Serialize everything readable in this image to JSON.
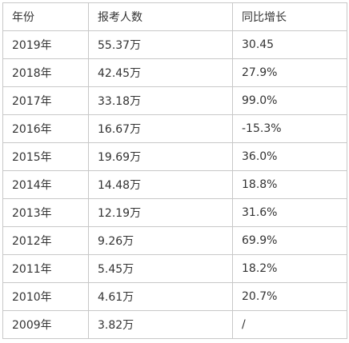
{
  "table": {
    "header": [
      "年份",
      "报考人数",
      "同比增长"
    ],
    "rows": [
      [
        "2019年",
        "55.37万",
        "30.45"
      ],
      [
        "2018年",
        "42.45万",
        "27.9%"
      ],
      [
        "2017年",
        "33.18万",
        "99.0%"
      ],
      [
        "2016年",
        "16.67万",
        "-15.3%"
      ],
      [
        "2015年",
        "19.69万",
        "36.0%"
      ],
      [
        "2014年",
        "14.48万",
        "18.8%"
      ],
      [
        "2013年",
        "12.19万",
        "31.6%"
      ],
      [
        "2012年",
        "9.26万",
        "69.9%"
      ],
      [
        "2011年",
        "5.45万",
        "18.2%"
      ],
      [
        "2010年",
        "4.61万",
        "20.7%"
      ],
      [
        "2009年",
        "3.82万",
        "/"
      ]
    ]
  }
}
